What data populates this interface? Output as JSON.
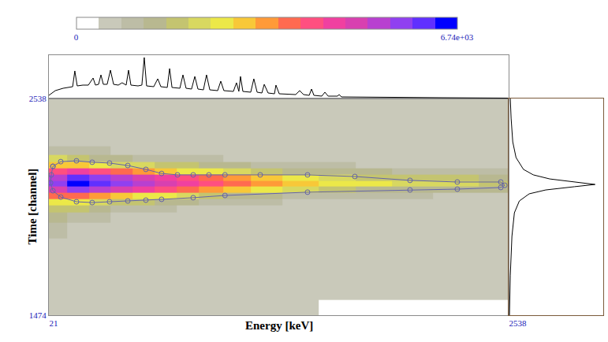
{
  "chart_data": {
    "type": "heatmap",
    "x_label": "Energy [keV]",
    "y_label": "Time [channel]",
    "xlim": [
      21,
      2538
    ],
    "xticks": [
      21,
      2538
    ],
    "ylim": [
      1474,
      2538
    ],
    "yticks": [
      1474,
      2538
    ],
    "grid": false,
    "x": [
      60,
      180,
      300,
      420,
      540,
      660,
      780,
      900,
      1050,
      1200,
      1400,
      1600,
      1800,
      2000,
      2250,
      2500
    ],
    "y": [
      1500,
      1600,
      1700,
      1800,
      1900,
      1960,
      2000,
      2030,
      2060,
      2090,
      2120,
      2150,
      2180,
      2210,
      2240,
      2280,
      2330,
      2400,
      2480,
      2530
    ],
    "z": [
      [
        450,
        450,
        450,
        450,
        450,
        450,
        450,
        450,
        450,
        450,
        450,
        350,
        350,
        350,
        350,
        350
      ],
      [
        480,
        480,
        480,
        480,
        480,
        480,
        480,
        480,
        480,
        480,
        480,
        480,
        420,
        420,
        420,
        420
      ],
      [
        500,
        500,
        500,
        500,
        500,
        500,
        500,
        500,
        500,
        500,
        500,
        500,
        500,
        500,
        500,
        500
      ],
      [
        650,
        550,
        550,
        550,
        550,
        550,
        550,
        550,
        550,
        550,
        550,
        550,
        550,
        550,
        550,
        550
      ],
      [
        800,
        700,
        650,
        600,
        600,
        600,
        600,
        600,
        600,
        600,
        600,
        600,
        600,
        600,
        600,
        600
      ],
      [
        1200,
        1000,
        850,
        750,
        700,
        650,
        620,
        600,
        580,
        550,
        550,
        550,
        550,
        550,
        550,
        550
      ],
      [
        1800,
        1600,
        1300,
        1100,
        950,
        850,
        750,
        700,
        650,
        600,
        580,
        560,
        550,
        540,
        530,
        520
      ],
      [
        2600,
        2500,
        2200,
        1900,
        1600,
        1400,
        1200,
        1000,
        900,
        800,
        700,
        650,
        600,
        580,
        560,
        550
      ],
      [
        3600,
        3800,
        3400,
        3000,
        2700,
        2400,
        2100,
        1800,
        1500,
        1300,
        1100,
        950,
        850,
        800,
        750,
        700
      ],
      [
        4800,
        5600,
        5200,
        4800,
        4400,
        4000,
        3600,
        3200,
        2800,
        2400,
        2000,
        1700,
        1500,
        1400,
        1300,
        1200
      ],
      [
        5600,
        6500,
        6200,
        5800,
        5400,
        5000,
        4600,
        4200,
        3800,
        3300,
        2900,
        2600,
        2400,
        2200,
        2000,
        1800
      ],
      [
        5200,
        6000,
        5600,
        5200,
        4800,
        4400,
        4000,
        3600,
        3200,
        2800,
        2400,
        2100,
        1900,
        1800,
        1700,
        1500
      ],
      [
        4200,
        4400,
        4000,
        3600,
        3300,
        3000,
        2700,
        2400,
        2100,
        1800,
        1500,
        1300,
        1200,
        1100,
        1000,
        900
      ],
      [
        3000,
        2800,
        2600,
        2300,
        2100,
        1900,
        1700,
        1500,
        1300,
        1100,
        900,
        800,
        700,
        650,
        600,
        600
      ],
      [
        2000,
        1800,
        1500,
        1300,
        1100,
        950,
        850,
        800,
        700,
        650,
        600,
        550,
        550,
        520,
        520,
        520
      ],
      [
        1100,
        900,
        800,
        700,
        650,
        600,
        520,
        520,
        520,
        520,
        520,
        520,
        520,
        520,
        520,
        520
      ],
      [
        600,
        600,
        600,
        600,
        600,
        500,
        500,
        500,
        500,
        500,
        500,
        500,
        500,
        500,
        500,
        500
      ],
      [
        500,
        500,
        500,
        500,
        500,
        500,
        500,
        500,
        500,
        500,
        500,
        500,
        500,
        500,
        500,
        500
      ],
      [
        480,
        480,
        480,
        480,
        480,
        480,
        480,
        480,
        480,
        480,
        480,
        480,
        480,
        480,
        480,
        480
      ],
      [
        450,
        450,
        450,
        450,
        450,
        450,
        450,
        450,
        450,
        450,
        450,
        450,
        450,
        450,
        450,
        450
      ]
    ],
    "colorbar": {
      "range": [
        0,
        6740
      ],
      "ticks": [
        0,
        {
          "value": 6740,
          "label": "6.74e+03"
        }
      ]
    },
    "gate": {
      "color": "#6464aa",
      "marker": "circle-open",
      "x": [
        43,
        86,
        172,
        258,
        353,
        453,
        552,
        638,
        725,
        811,
        897,
        985,
        1178,
        1437,
        1696,
        1998,
        2257,
        2495,
        2517,
        2495,
        2257,
        1998,
        1437,
        985,
        811,
        638,
        552,
        453,
        353,
        258,
        172,
        86,
        43,
        30,
        34,
        43
      ],
      "y": [
        2205,
        2228,
        2232,
        2225,
        2221,
        2209,
        2190,
        2170,
        2163,
        2163,
        2163,
        2163,
        2163,
        2163,
        2155,
        2136,
        2128,
        2128,
        2112,
        2101,
        2093,
        2089,
        2078,
        2062,
        2051,
        2043,
        2039,
        2035,
        2031,
        2027,
        2031,
        2054,
        2085,
        2124,
        2163,
        2205
      ]
    },
    "x_projection": {
      "color": "#000000",
      "tick_labels": false,
      "ylim": [
        0,
        55
      ],
      "x": [
        21,
        56,
        99,
        133,
        151,
        163,
        176,
        207,
        237,
        263,
        276,
        293,
        306,
        319,
        340,
        358,
        375,
        401,
        422,
        444,
        457,
        470,
        509,
        530,
        543,
        556,
        595,
        617,
        634,
        669,
        682,
        695,
        738,
        755,
        772,
        802,
        820,
        837,
        867,
        884,
        902,
        945,
        962,
        979,
        1031,
        1048,
        1061,
        1070,
        1083,
        1126,
        1143,
        1161,
        1187,
        1200,
        1221,
        1256,
        1264,
        1282,
        1372,
        1394,
        1415,
        1446,
        1459,
        1472,
        1515,
        1532,
        1550,
        1601,
        1610,
        1623,
        1782,
        1912,
        2171,
        2344,
        2538
      ],
      "values": [
        4,
        10,
        13,
        14,
        15,
        35,
        16,
        17,
        17,
        26,
        17,
        18,
        30,
        18,
        18,
        36,
        18,
        17,
        20,
        17,
        36,
        17,
        16,
        17,
        52,
        16,
        15,
        25,
        15,
        14,
        38,
        14,
        13,
        30,
        13,
        12,
        28,
        12,
        11,
        30,
        11,
        10,
        22,
        10,
        9,
        20,
        9,
        28,
        9,
        8,
        25,
        8,
        7,
        18,
        7,
        6,
        17,
        6,
        5,
        10,
        5,
        4,
        12,
        4,
        3,
        8,
        3,
        3,
        5,
        2,
        2,
        1.5,
        1,
        0.5,
        0.5
      ]
    },
    "y_projection": {
      "color": "#000000",
      "tick_labels": false,
      "xlim": [
        0,
        115
      ],
      "y": [
        2538,
        2441,
        2325,
        2248,
        2190,
        2163,
        2143,
        2128,
        2116,
        2105,
        2089,
        2070,
        2035,
        1977,
        1861,
        1668,
        1474
      ],
      "values": [
        2,
        3,
        5,
        9,
        18,
        30,
        50,
        80,
        105,
        80,
        45,
        25,
        13,
        7,
        4,
        2,
        1
      ]
    }
  }
}
